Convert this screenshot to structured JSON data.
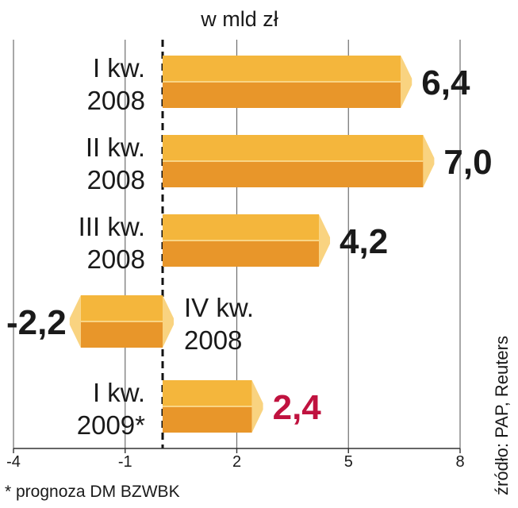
{
  "chart_data": {
    "type": "bar",
    "orientation": "horizontal",
    "unit_label": "w mld zł",
    "categories": [
      [
        "I kw.",
        "2008"
      ],
      [
        "II kw.",
        "2008"
      ],
      [
        "III kw.",
        "2008"
      ],
      [
        "IV kw.",
        "2008"
      ],
      [
        "I kw.",
        "2009*"
      ]
    ],
    "values": [
      6.4,
      7.0,
      4.2,
      -2.2,
      2.4
    ],
    "value_labels": [
      "6,4",
      "7,0",
      "4,2",
      "-2,2",
      "2,4"
    ],
    "highlight": [
      false,
      false,
      false,
      false,
      true
    ],
    "x_ticks": [
      -4,
      -1,
      2,
      5,
      8
    ],
    "x_tick_labels": [
      "-4",
      "-1",
      "2",
      "5",
      "8"
    ],
    "xlim": [
      -4,
      8
    ],
    "grid": "vertical",
    "footnote": "* prognoza DM BZWBK",
    "source": "źródło: PAP, Reuters",
    "colors": {
      "bar_top": "#f4b63c",
      "bar_bottom": "#e8962a",
      "bar_edge": "#f9d585",
      "cap": "#f9d380",
      "text": "#1a1a1a",
      "highlight_text": "#c0123f",
      "grid": "#6f6f6f"
    }
  }
}
